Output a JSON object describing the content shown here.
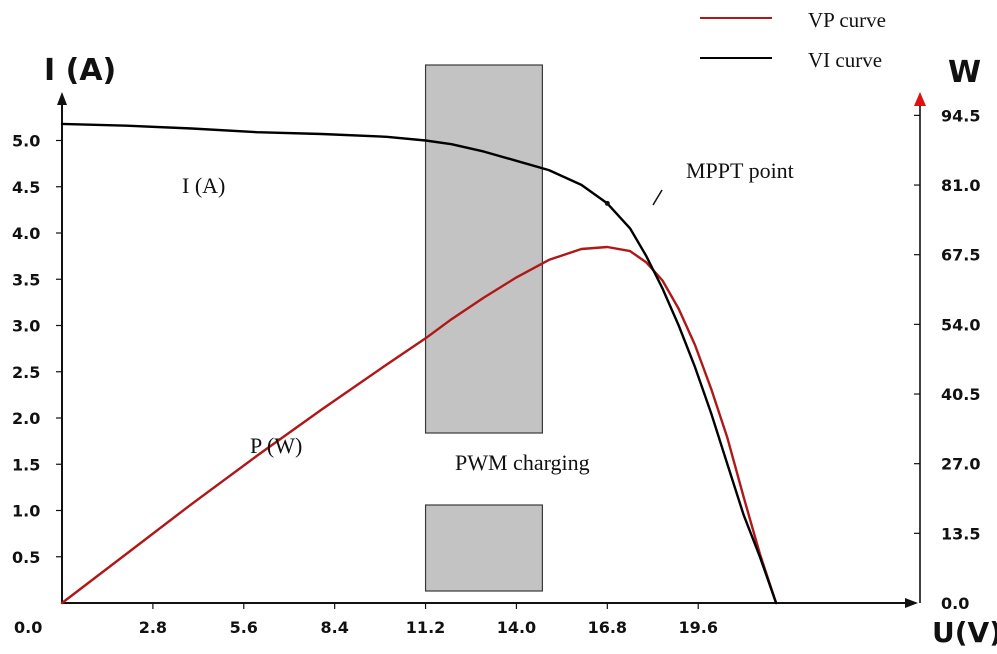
{
  "chart_data": {
    "type": "line",
    "xlabel": "U(V)",
    "ylabel_left": "I (A)",
    "ylabel_right": "W",
    "xlim": [
      0,
      23.8
    ],
    "ylim_left": [
      0,
      5.4
    ],
    "ylim_right": [
      0,
      103
    ],
    "x_ticks": [
      "0.0",
      "2.8",
      "5.6",
      "8.4",
      "11.2",
      "14.0",
      "16.8",
      "19.6"
    ],
    "x_tick_values": [
      0,
      2.8,
      5.6,
      8.4,
      11.2,
      14.0,
      16.8,
      19.6
    ],
    "y_left_ticks": [
      "0.5",
      "1.0",
      "1.5",
      "2.0",
      "2.5",
      "3.0",
      "3.5",
      "4.0",
      "4.5",
      "5.0"
    ],
    "y_left_tick_values": [
      0.5,
      1.0,
      1.5,
      2.0,
      2.5,
      3.0,
      3.5,
      4.0,
      4.5,
      5.0
    ],
    "y_right_ticks": [
      "0.0",
      "13.5",
      "27.0",
      "40.5",
      "54.0",
      "67.5",
      "81.0",
      "94.5"
    ],
    "y_right_tick_values": [
      0,
      13.5,
      27.0,
      40.5,
      54.0,
      67.5,
      81.0,
      94.5
    ],
    "series": [
      {
        "name": "VP curve",
        "axis": "right",
        "color": "#b01818",
        "x": [
          0,
          2,
          4,
          6,
          8,
          10,
          11.2,
          12,
          13,
          14,
          15,
          16,
          16.8,
          17.5,
          18,
          18.5,
          19,
          19.5,
          20,
          20.5,
          21,
          21.5,
          22
        ],
        "y": [
          0,
          9.6,
          19.2,
          28.5,
          37.5,
          46.2,
          51.3,
          55.0,
          59.2,
          63.1,
          66.5,
          68.6,
          69.0,
          68.2,
          66.0,
          62.5,
          57.0,
          50.0,
          41.5,
          32.0,
          20.5,
          9.5,
          0
        ]
      },
      {
        "name": "VI curve",
        "axis": "left",
        "color": "#000000",
        "x": [
          0,
          2,
          4,
          6,
          8,
          10,
          11.2,
          12,
          13,
          14,
          15,
          16,
          16.8,
          17.5,
          18,
          18.5,
          19,
          19.5,
          20,
          20.5,
          21,
          21.5,
          22
        ],
        "y": [
          5.18,
          5.16,
          5.13,
          5.09,
          5.07,
          5.04,
          5.0,
          4.96,
          4.88,
          4.78,
          4.68,
          4.52,
          4.32,
          4.05,
          3.75,
          3.4,
          3.0,
          2.55,
          2.05,
          1.5,
          0.95,
          0.5,
          0.0
        ]
      }
    ],
    "annotations": {
      "current_label": "I (A)",
      "power_label": "P (W)",
      "mppt_label": "MPPT point",
      "pwm_label": "PWM charging",
      "pwm_region": [
        11.2,
        14.8
      ],
      "mppt_point": [
        16.8,
        4.32
      ]
    },
    "legend_placement": "top-right",
    "grid": false
  }
}
